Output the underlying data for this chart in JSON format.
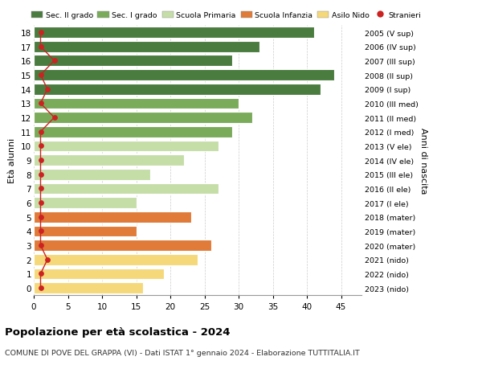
{
  "ages": [
    18,
    17,
    16,
    15,
    14,
    13,
    12,
    11,
    10,
    9,
    8,
    7,
    6,
    5,
    4,
    3,
    2,
    1,
    0
  ],
  "bar_values": [
    41,
    33,
    29,
    44,
    42,
    30,
    32,
    29,
    27,
    22,
    17,
    27,
    15,
    23,
    15,
    26,
    24,
    19,
    16
  ],
  "stranieri_values": [
    1,
    1,
    3,
    1,
    2,
    1,
    3,
    1,
    1,
    1,
    1,
    1,
    1,
    1,
    1,
    1,
    2,
    1,
    1
  ],
  "right_labels": [
    "2005 (V sup)",
    "2006 (IV sup)",
    "2007 (III sup)",
    "2008 (II sup)",
    "2009 (I sup)",
    "2010 (III med)",
    "2011 (II med)",
    "2012 (I med)",
    "2013 (V ele)",
    "2014 (IV ele)",
    "2015 (III ele)",
    "2016 (II ele)",
    "2017 (I ele)",
    "2018 (mater)",
    "2019 (mater)",
    "2020 (mater)",
    "2021 (nido)",
    "2022 (nido)",
    "2023 (nido)"
  ],
  "bar_colors": [
    "#4a7c3f",
    "#4a7c3f",
    "#4a7c3f",
    "#4a7c3f",
    "#4a7c3f",
    "#7aab5a",
    "#7aab5a",
    "#7aab5a",
    "#c5dea8",
    "#c5dea8",
    "#c5dea8",
    "#c5dea8",
    "#c5dea8",
    "#e07b39",
    "#e07b39",
    "#e07b39",
    "#f5d87a",
    "#f5d87a",
    "#f5d87a"
  ],
  "legend_labels": [
    "Sec. II grado",
    "Sec. I grado",
    "Scuola Primaria",
    "Scuola Infanzia",
    "Asilo Nido",
    "Stranieri"
  ],
  "legend_colors": [
    "#4a7c3f",
    "#7aab5a",
    "#c5dea8",
    "#e07b39",
    "#f5d87a",
    "#cc2222"
  ],
  "stranieri_color": "#cc2222",
  "ylabel": "Età alunni",
  "right_ylabel": "Anni di nascita",
  "title": "Popolazione per età scolastica - 2024",
  "subtitle": "COMUNE DI POVE DEL GRAPPA (VI) - Dati ISTAT 1° gennaio 2024 - Elaborazione TUTTITALIA.IT",
  "xlim": [
    0,
    48
  ],
  "xticks": [
    0,
    5,
    10,
    15,
    20,
    25,
    30,
    35,
    40,
    45
  ],
  "background_color": "#ffffff",
  "grid_color": "#cccccc"
}
